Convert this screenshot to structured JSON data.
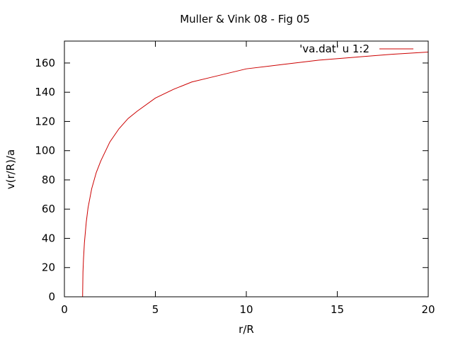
{
  "chart_data": {
    "type": "line",
    "title": "Muller & Vink 08 - Fig 05",
    "xlabel": "r/R",
    "ylabel": "v(r/R)/a",
    "xlim": [
      0,
      20
    ],
    "ylim": [
      0,
      175
    ],
    "xticks": [
      0,
      5,
      10,
      15,
      20
    ],
    "yticks": [
      0,
      20,
      40,
      60,
      80,
      100,
      120,
      140,
      160
    ],
    "grid": false,
    "legend_position": "top-right",
    "series": [
      {
        "name": "'va.dat' u 1:2",
        "color": "#cc0000",
        "x": [
          1.0,
          1.02,
          1.05,
          1.1,
          1.2,
          1.3,
          1.5,
          1.75,
          2.0,
          2.5,
          3.0,
          3.5,
          4.0,
          5.0,
          6.0,
          7.0,
          8.0,
          10.0,
          12.0,
          14.0,
          16.0,
          18.0,
          20.0
        ],
        "y": [
          0,
          17,
          26,
          37,
          51,
          61,
          74,
          85,
          93,
          106,
          115,
          122,
          127,
          136,
          142,
          147,
          150,
          156,
          159,
          162,
          164,
          166,
          167.5
        ]
      }
    ]
  }
}
